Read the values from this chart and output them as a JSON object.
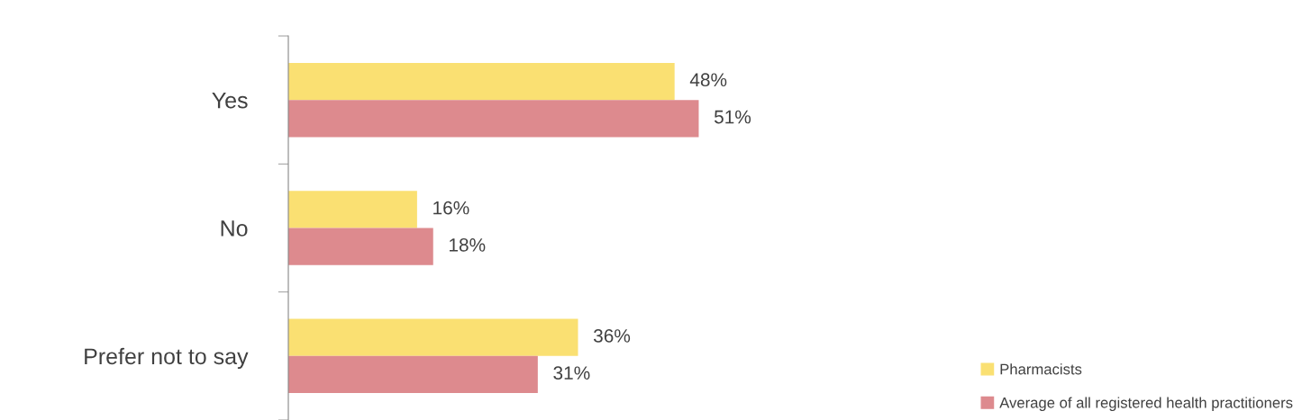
{
  "chart_data": {
    "type": "bar",
    "orientation": "horizontal",
    "categories": [
      "Yes",
      "No",
      "Prefer not to say"
    ],
    "series": [
      {
        "name": "Pharmacists",
        "color": "#fae072",
        "values": [
          48,
          16,
          36
        ],
        "value_labels": [
          "48%",
          "16%",
          "36%"
        ]
      },
      {
        "name": "Average of all registered health practitioners",
        "color": "#dd8a8e",
        "values": [
          51,
          18,
          31
        ],
        "value_labels": [
          "51%",
          "18%",
          "31%"
        ]
      }
    ],
    "legend": "bottom right",
    "grid": false,
    "tick_labels": "y"
  }
}
